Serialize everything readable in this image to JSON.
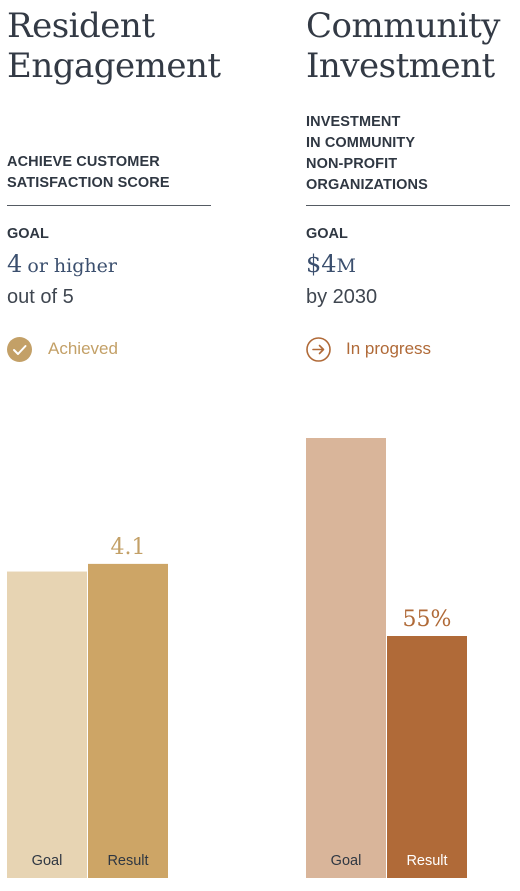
{
  "colors": {
    "heading": "#333a45",
    "goal_value": "#3b4f6e",
    "achieved": "#c3a067",
    "in_progress": "#b06a38",
    "left_goal_bar": "#e7d4b3",
    "left_result_bar": "#cda566",
    "right_goal_bar": "#d9b59a",
    "right_result_bar": "#b06a38"
  },
  "panels": [
    {
      "title_lines": [
        "Resident",
        "Engagement"
      ],
      "subtitle_lines": [
        "ACHIEVE CUSTOMER",
        "SATISFACTION SCORE"
      ],
      "goal_label": "GOAL",
      "goal_value_main": "4",
      "goal_value_rest": "or higher",
      "goal_sub": "out of 5",
      "status_icon": "check-circle-icon",
      "status_text": "Achieved",
      "result_label": "4.1"
    },
    {
      "title_lines": [
        "Community",
        "Investment"
      ],
      "subtitle_lines": [
        "INVESTMENT",
        "IN COMMUNITY",
        "NON-PROFIT",
        "ORGANIZATIONS"
      ],
      "goal_label": "GOAL",
      "goal_value_main": "$4",
      "goal_value_rest": "M",
      "goal_sub": "by 2030",
      "status_icon": "arrow-right-circle-icon",
      "status_text": "In progress",
      "result_label": "55%"
    }
  ],
  "chart_data": [
    {
      "type": "bar",
      "categories": [
        "Goal",
        "Result"
      ],
      "values": [
        4.0,
        4.1
      ],
      "data_labels": [
        "",
        "4.1"
      ],
      "ylim": [
        0,
        6.5
      ]
    },
    {
      "type": "bar",
      "categories": [
        "Goal",
        "Result"
      ],
      "values": [
        100,
        55
      ],
      "data_labels": [
        "",
        "55%"
      ],
      "ylim": [
        0,
        100
      ]
    }
  ]
}
